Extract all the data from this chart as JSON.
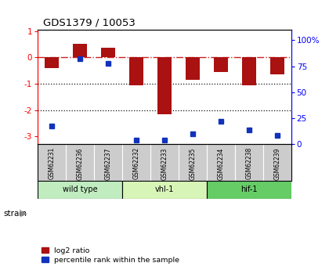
{
  "title": "GDS1379 / 10053",
  "samples": [
    "GSM62231",
    "GSM62236",
    "GSM62237",
    "GSM62232",
    "GSM62233",
    "GSM62235",
    "GSM62234",
    "GSM62238",
    "GSM62239"
  ],
  "log2_ratio": [
    -0.42,
    0.52,
    0.38,
    -1.05,
    -2.15,
    -0.85,
    -0.55,
    -1.05,
    -0.65
  ],
  "percentile_rank": [
    18,
    82,
    78,
    4,
    4,
    10,
    22,
    14,
    9
  ],
  "groups": [
    {
      "label": "wild type",
      "start": 0,
      "end": 3,
      "color": "#c0ecc0"
    },
    {
      "label": "vhl-1",
      "start": 3,
      "end": 6,
      "color": "#d8f5b8"
    },
    {
      "label": "hif-1",
      "start": 6,
      "end": 9,
      "color": "#66cc66"
    }
  ],
  "bar_color_red": "#aa1111",
  "bar_color_blue": "#1133bb",
  "ylim_left": [
    -3.3,
    1.05
  ],
  "ylim_right": [
    0,
    110
  ],
  "yticks_left": [
    -3,
    -2,
    -1,
    0,
    1
  ],
  "yticks_right": [
    0,
    25,
    50,
    75,
    100
  ],
  "hline_zero_color": "#cc2222",
  "dotted_line_color": "#111111",
  "bg_color": "#ffffff",
  "label_bg": "#cccccc",
  "strain_label": "strain",
  "legend_red": "log2 ratio",
  "legend_blue": "percentile rank within the sample"
}
